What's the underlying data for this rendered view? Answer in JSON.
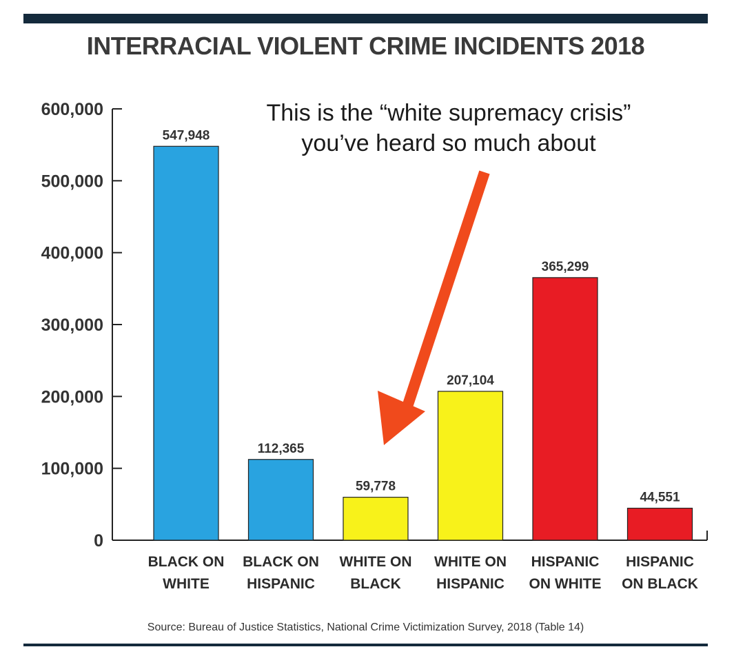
{
  "chart_data": {
    "type": "bar",
    "title": "INTERRACIAL VIOLENT CRIME INCIDENTS 2018",
    "categories": [
      [
        "BLACK ON",
        "WHITE"
      ],
      [
        "BLACK ON",
        "HISPANIC"
      ],
      [
        "WHITE ON",
        "BLACK"
      ],
      [
        "WHITE ON",
        "HISPANIC"
      ],
      [
        "HISPANIC",
        "ON WHITE"
      ],
      [
        "HISPANIC",
        "ON BLACK"
      ]
    ],
    "values": [
      547948,
      112365,
      59778,
      207104,
      365299,
      44551
    ],
    "value_labels": [
      "547,948",
      "112,365",
      "59,778",
      "207,104",
      "365,299",
      "44,551"
    ],
    "bar_colors": [
      "#29a3e0",
      "#29a3e0",
      "#f8f21a",
      "#f8f21a",
      "#e81c24",
      "#e81c24"
    ],
    "ylim": [
      0,
      600000
    ],
    "yticks": [
      0,
      100000,
      200000,
      300000,
      400000,
      500000,
      600000
    ],
    "ytick_labels": [
      "0",
      "100,000",
      "200,000",
      "300,000",
      "400,000",
      "500,000",
      "600,000"
    ],
    "xlabel": "",
    "ylabel": "",
    "grid": false,
    "annotation": {
      "lines": [
        "This is the “white supremacy crisis”",
        "you’ve heard so much about"
      ],
      "arrow_color": "#f04a1c",
      "points_to": "WHITE ON BLACK"
    },
    "source": "Source: Bureau of Justice Statistics, National Crime Victimization Survey, 2018 (Table 14)"
  }
}
